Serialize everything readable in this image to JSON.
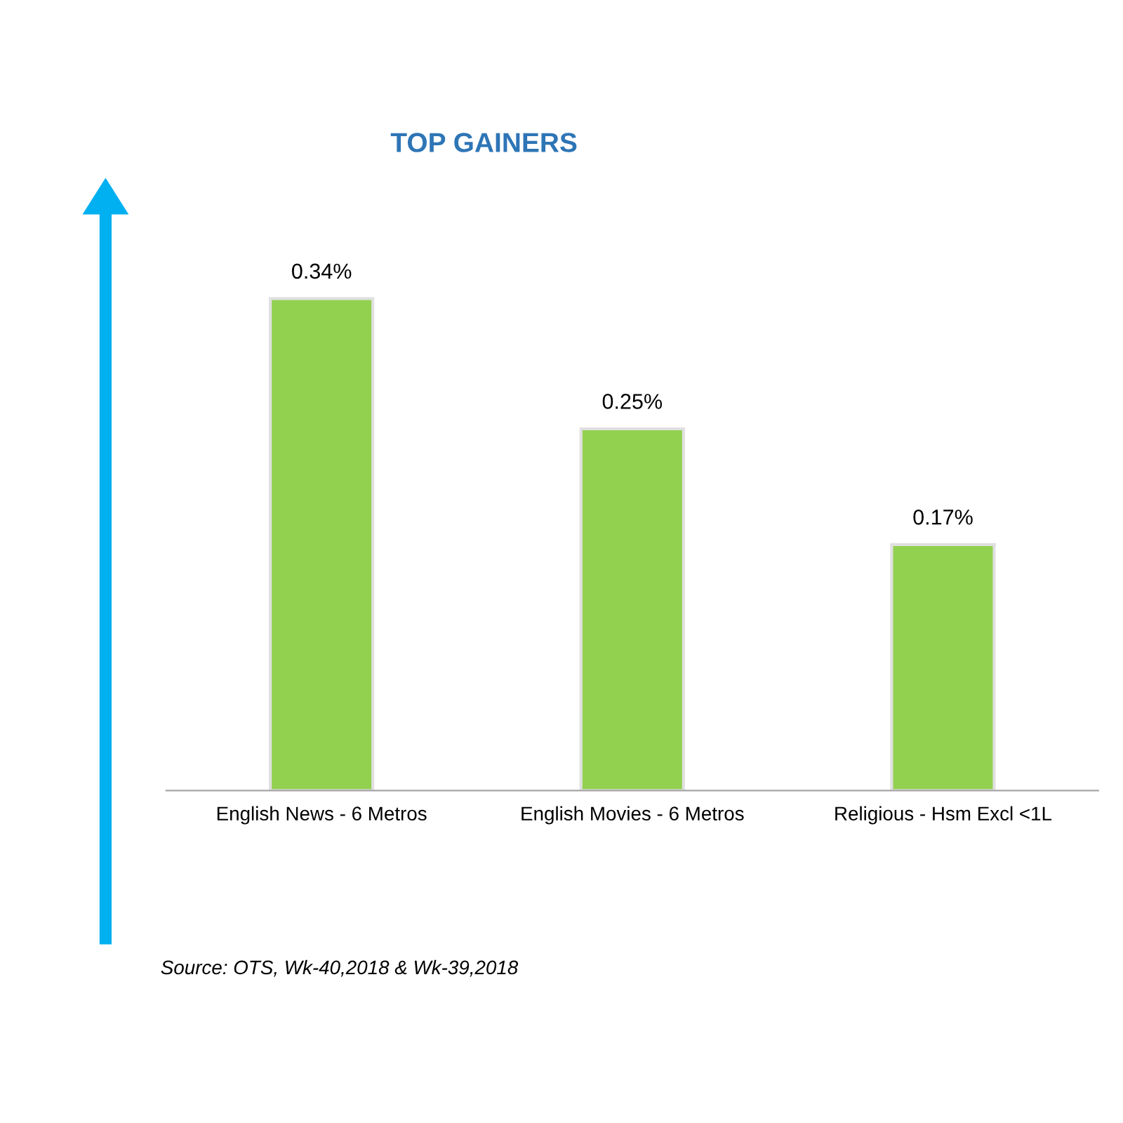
{
  "chart_data": {
    "type": "bar",
    "title": "TOP GAINERS",
    "categories": [
      "English News - 6 Metros",
      "English Movies - 6 Metros",
      "Religious - Hsm Excl <1L"
    ],
    "values": [
      0.34,
      0.25,
      0.17
    ],
    "value_labels": [
      "0.34%",
      "0.25%",
      "0.17%"
    ],
    "color": "#92d050",
    "annotations": [
      "Source: OTS, Wk-40,2018 & Wk-39,2018"
    ]
  }
}
